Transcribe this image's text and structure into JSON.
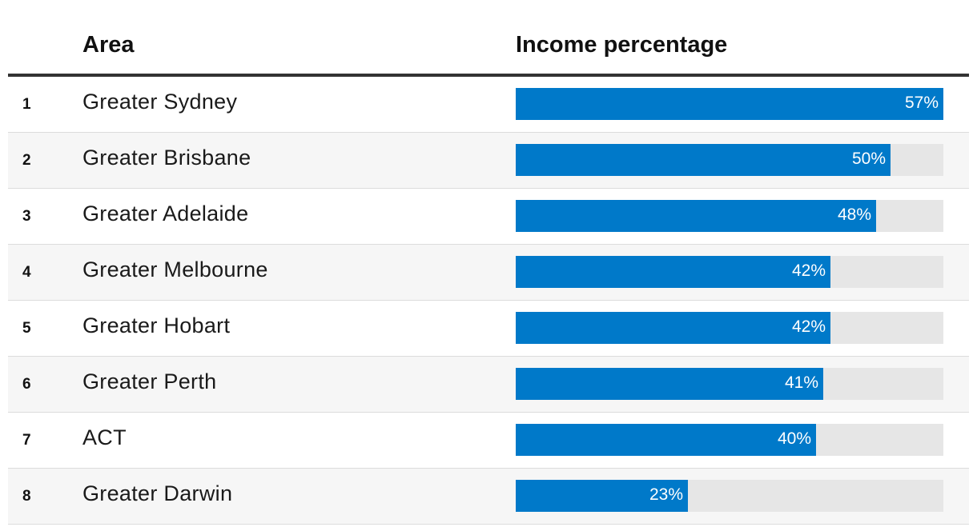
{
  "header": {
    "area": "Area",
    "income": "Income percentage"
  },
  "chart_data": {
    "type": "bar",
    "orientation": "horizontal",
    "xlim": [
      0,
      57
    ],
    "bar_color": "#0079c9",
    "track_color": "#e6e6e6",
    "rows": [
      {
        "rank": "1",
        "area": "Greater Sydney",
        "value": 57,
        "label": "57%"
      },
      {
        "rank": "2",
        "area": "Greater Brisbane",
        "value": 50,
        "label": "50%"
      },
      {
        "rank": "3",
        "area": "Greater Adelaide",
        "value": 48,
        "label": "48%"
      },
      {
        "rank": "4",
        "area": "Greater Melbourne",
        "value": 42,
        "label": "42%"
      },
      {
        "rank": "5",
        "area": "Greater Hobart",
        "value": 42,
        "label": "42%"
      },
      {
        "rank": "6",
        "area": "Greater Perth",
        "value": 41,
        "label": "41%"
      },
      {
        "rank": "7",
        "area": "ACT",
        "value": 40,
        "label": "40%"
      },
      {
        "rank": "8",
        "area": "Greater Darwin",
        "value": 23,
        "label": "23%"
      }
    ]
  }
}
